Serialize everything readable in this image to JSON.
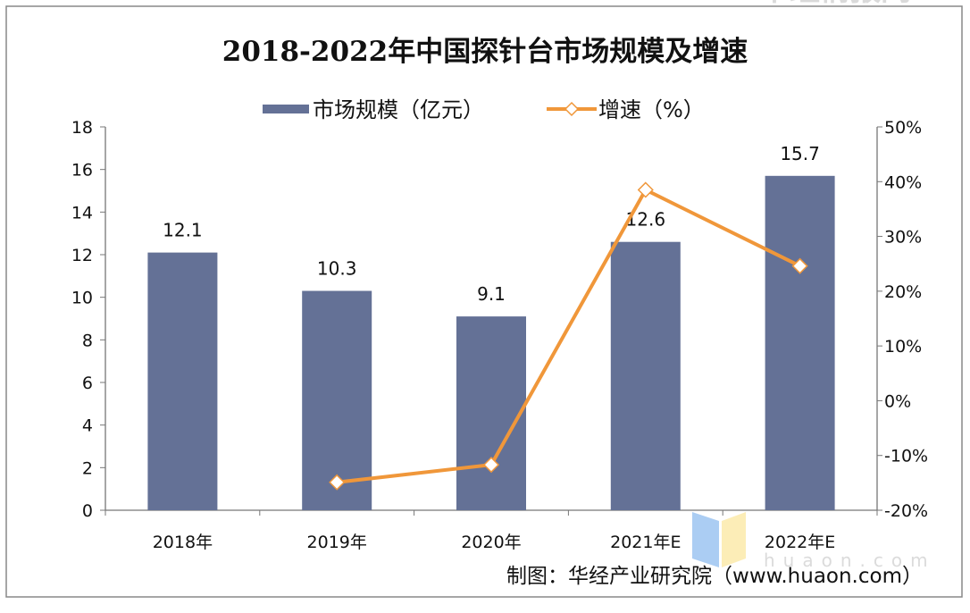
{
  "chart_data": {
    "type": "bar+line",
    "title": "2018-2022年中国探针台市场规模及增速",
    "categories": [
      "2018年",
      "2019年",
      "2020年",
      "2021年E",
      "2022年E"
    ],
    "series": [
      {
        "name": "市场规模（亿元）",
        "type": "bar",
        "axis": "left",
        "color": "#647196",
        "values": [
          12.1,
          10.3,
          9.1,
          12.6,
          15.7
        ],
        "labels": [
          "12.1",
          "10.3",
          "9.1",
          "12.6",
          "15.7"
        ]
      },
      {
        "name": "增速（%）",
        "type": "line",
        "axis": "right",
        "color": "#F0973A",
        "marker": "diamond-open",
        "values": [
          null,
          -14.9,
          -11.7,
          38.5,
          24.6
        ]
      }
    ],
    "left_axis": {
      "ylim": [
        0,
        18
      ],
      "ticks": [
        "0",
        "2",
        "4",
        "6",
        "8",
        "10",
        "12",
        "14",
        "16",
        "18"
      ]
    },
    "right_axis": {
      "ylim": [
        -20,
        50
      ],
      "ticks": [
        "-20%",
        "-10%",
        "0%",
        "10%",
        "20%",
        "30%",
        "40%",
        "50%"
      ]
    },
    "legend_position": "top",
    "grid": false
  },
  "source": "制图：华经产业研究院（www.huaon.com）",
  "watermark": {
    "text": "华经情报网",
    "sub": "huaon.com"
  }
}
